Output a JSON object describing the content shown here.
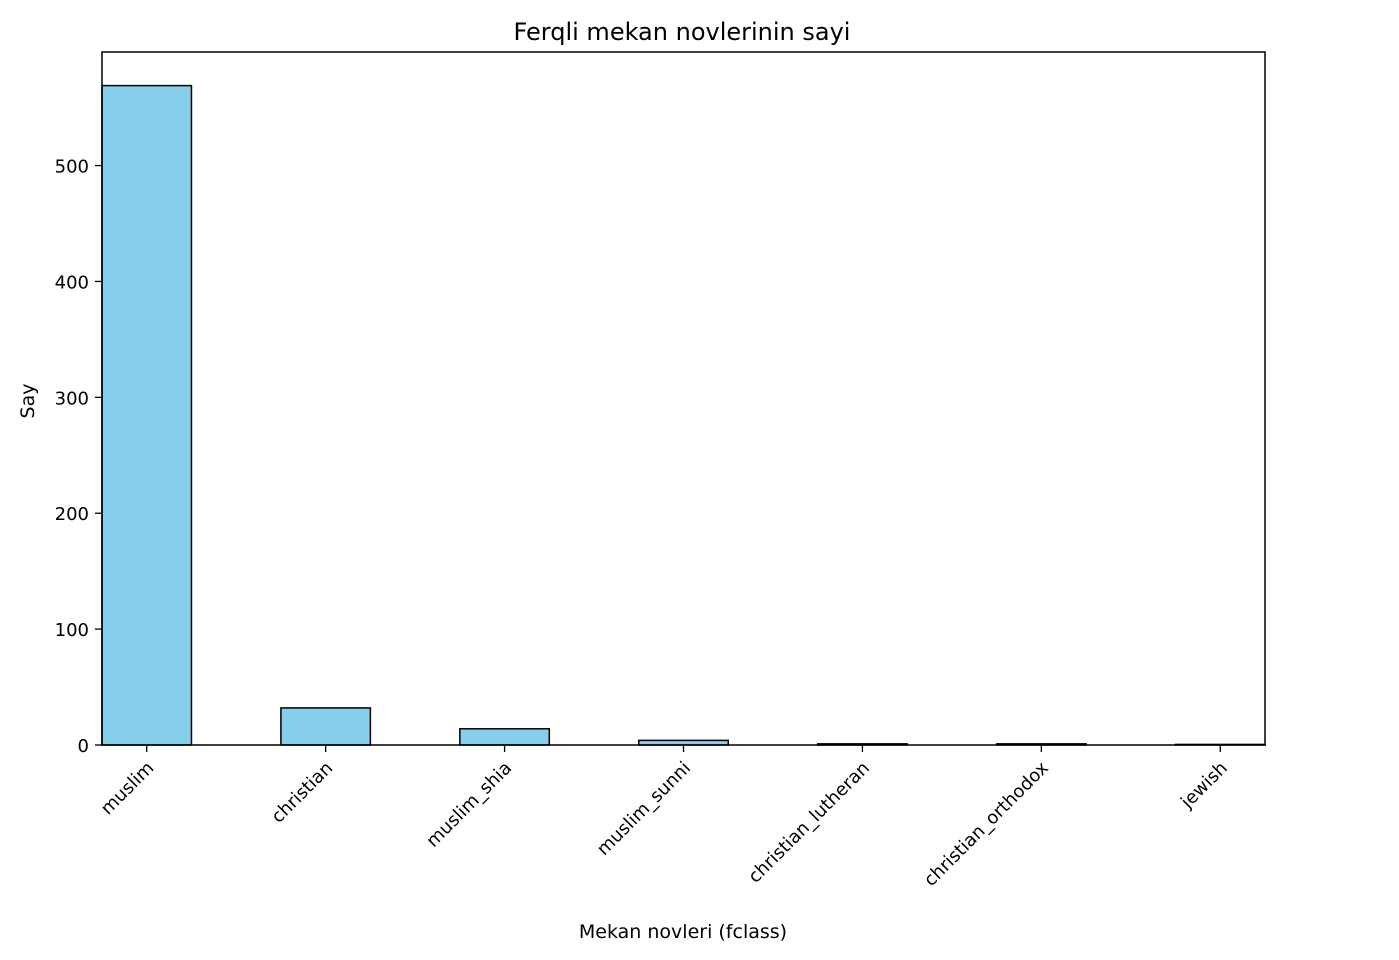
{
  "chart_data": {
    "type": "bar",
    "title": "Ferqli mekan novlerinin sayi",
    "xlabel": "Mekan novleri (fclass)",
    "ylabel": "Say",
    "categories": [
      "muslim",
      "christian",
      "muslim_shia",
      "muslim_sunni",
      "christian_lutheran",
      "christian_orthodox",
      "jewish"
    ],
    "values": [
      569,
      32,
      14,
      4,
      1,
      1,
      0.5
    ],
    "yticks": [
      0,
      100,
      200,
      300,
      400,
      500
    ],
    "ylim": [
      0,
      598
    ],
    "bar_color": "#87ceeb",
    "edge_color": "#000000",
    "grid": false,
    "legend": "none"
  }
}
